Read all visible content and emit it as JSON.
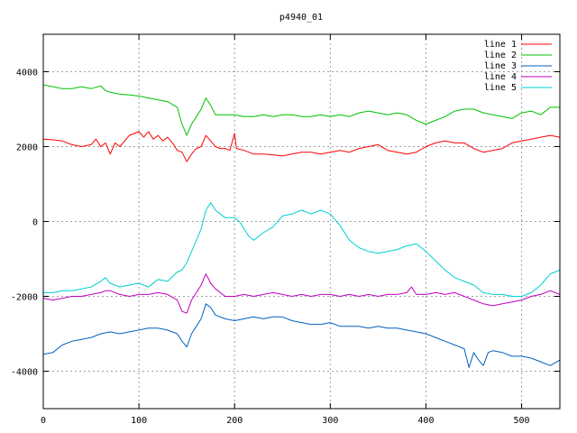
{
  "chart_data": {
    "type": "line",
    "title": "p4940_01",
    "xlabel": "",
    "ylabel": "",
    "xlim": [
      0,
      540
    ],
    "ylim": [
      -5000,
      5000
    ],
    "x_ticks": [
      0,
      100,
      200,
      300,
      400,
      500
    ],
    "y_ticks": [
      -4000,
      -2000,
      0,
      2000,
      4000
    ],
    "grid": true,
    "legend_position": "top-right",
    "series": [
      {
        "name": "line 1",
        "color": "#ff0000",
        "points": [
          [
            0,
            2200
          ],
          [
            10,
            2180
          ],
          [
            20,
            2150
          ],
          [
            30,
            2050
          ],
          [
            40,
            2000
          ],
          [
            50,
            2050
          ],
          [
            55,
            2200
          ],
          [
            60,
            2000
          ],
          [
            65,
            2100
          ],
          [
            70,
            1800
          ],
          [
            75,
            2100
          ],
          [
            80,
            2000
          ],
          [
            90,
            2300
          ],
          [
            95,
            2350
          ],
          [
            100,
            2400
          ],
          [
            105,
            2250
          ],
          [
            110,
            2400
          ],
          [
            115,
            2200
          ],
          [
            120,
            2300
          ],
          [
            125,
            2150
          ],
          [
            130,
            2250
          ],
          [
            135,
            2100
          ],
          [
            140,
            1900
          ],
          [
            145,
            1850
          ],
          [
            150,
            1600
          ],
          [
            155,
            1800
          ],
          [
            160,
            1950
          ],
          [
            165,
            2000
          ],
          [
            170,
            2300
          ],
          [
            175,
            2150
          ],
          [
            180,
            2000
          ],
          [
            185,
            1950
          ],
          [
            190,
            1950
          ],
          [
            195,
            1900
          ],
          [
            200,
            2350
          ],
          [
            202,
            1950
          ],
          [
            210,
            1900
          ],
          [
            220,
            1800
          ],
          [
            230,
            1800
          ],
          [
            240,
            1780
          ],
          [
            250,
            1750
          ],
          [
            260,
            1800
          ],
          [
            270,
            1850
          ],
          [
            280,
            1850
          ],
          [
            290,
            1800
          ],
          [
            300,
            1850
          ],
          [
            310,
            1900
          ],
          [
            320,
            1850
          ],
          [
            330,
            1950
          ],
          [
            340,
            2000
          ],
          [
            350,
            2050
          ],
          [
            360,
            1900
          ],
          [
            370,
            1850
          ],
          [
            380,
            1800
          ],
          [
            390,
            1850
          ],
          [
            400,
            2000
          ],
          [
            410,
            2100
          ],
          [
            420,
            2150
          ],
          [
            430,
            2100
          ],
          [
            440,
            2100
          ],
          [
            450,
            1950
          ],
          [
            460,
            1850
          ],
          [
            470,
            1900
          ],
          [
            480,
            1950
          ],
          [
            490,
            2100
          ],
          [
            500,
            2150
          ],
          [
            510,
            2200
          ],
          [
            520,
            2250
          ],
          [
            530,
            2300
          ],
          [
            540,
            2250
          ]
        ]
      },
      {
        "name": "line 2",
        "color": "#00c000",
        "points": [
          [
            0,
            3650
          ],
          [
            10,
            3600
          ],
          [
            20,
            3550
          ],
          [
            30,
            3550
          ],
          [
            40,
            3600
          ],
          [
            50,
            3550
          ],
          [
            60,
            3620
          ],
          [
            65,
            3500
          ],
          [
            70,
            3450
          ],
          [
            80,
            3400
          ],
          [
            90,
            3380
          ],
          [
            100,
            3350
          ],
          [
            110,
            3300
          ],
          [
            120,
            3250
          ],
          [
            130,
            3200
          ],
          [
            140,
            3050
          ],
          [
            145,
            2600
          ],
          [
            150,
            2300
          ],
          [
            155,
            2600
          ],
          [
            160,
            2800
          ],
          [
            165,
            3000
          ],
          [
            170,
            3300
          ],
          [
            175,
            3100
          ],
          [
            180,
            2850
          ],
          [
            190,
            2850
          ],
          [
            200,
            2850
          ],
          [
            210,
            2800
          ],
          [
            220,
            2800
          ],
          [
            230,
            2850
          ],
          [
            240,
            2800
          ],
          [
            250,
            2850
          ],
          [
            260,
            2850
          ],
          [
            270,
            2800
          ],
          [
            280,
            2800
          ],
          [
            290,
            2850
          ],
          [
            300,
            2800
          ],
          [
            310,
            2850
          ],
          [
            320,
            2800
          ],
          [
            330,
            2900
          ],
          [
            340,
            2950
          ],
          [
            350,
            2900
          ],
          [
            360,
            2850
          ],
          [
            370,
            2900
          ],
          [
            380,
            2850
          ],
          [
            390,
            2700
          ],
          [
            400,
            2600
          ],
          [
            410,
            2700
          ],
          [
            420,
            2800
          ],
          [
            430,
            2950
          ],
          [
            440,
            3000
          ],
          [
            450,
            3000
          ],
          [
            460,
            2900
          ],
          [
            470,
            2850
          ],
          [
            480,
            2800
          ],
          [
            490,
            2750
          ],
          [
            500,
            2900
          ],
          [
            510,
            2950
          ],
          [
            520,
            2850
          ],
          [
            530,
            3050
          ],
          [
            540,
            3050
          ]
        ]
      },
      {
        "name": "line 3",
        "color": "#0060c0",
        "points": [
          [
            0,
            -3550
          ],
          [
            10,
            -3500
          ],
          [
            20,
            -3300
          ],
          [
            30,
            -3200
          ],
          [
            40,
            -3150
          ],
          [
            50,
            -3100
          ],
          [
            60,
            -3000
          ],
          [
            70,
            -2950
          ],
          [
            80,
            -3000
          ],
          [
            90,
            -2950
          ],
          [
            100,
            -2900
          ],
          [
            110,
            -2850
          ],
          [
            120,
            -2850
          ],
          [
            130,
            -2900
          ],
          [
            140,
            -3000
          ],
          [
            145,
            -3200
          ],
          [
            150,
            -3350
          ],
          [
            155,
            -3000
          ],
          [
            160,
            -2800
          ],
          [
            165,
            -2600
          ],
          [
            170,
            -2200
          ],
          [
            175,
            -2300
          ],
          [
            180,
            -2500
          ],
          [
            190,
            -2600
          ],
          [
            200,
            -2650
          ],
          [
            210,
            -2600
          ],
          [
            220,
            -2550
          ],
          [
            230,
            -2600
          ],
          [
            240,
            -2550
          ],
          [
            250,
            -2550
          ],
          [
            260,
            -2650
          ],
          [
            270,
            -2700
          ],
          [
            280,
            -2750
          ],
          [
            290,
            -2750
          ],
          [
            300,
            -2700
          ],
          [
            310,
            -2800
          ],
          [
            320,
            -2800
          ],
          [
            330,
            -2800
          ],
          [
            340,
            -2850
          ],
          [
            350,
            -2800
          ],
          [
            360,
            -2850
          ],
          [
            370,
            -2850
          ],
          [
            380,
            -2900
          ],
          [
            390,
            -2950
          ],
          [
            400,
            -3000
          ],
          [
            410,
            -3100
          ],
          [
            420,
            -3200
          ],
          [
            430,
            -3300
          ],
          [
            440,
            -3400
          ],
          [
            445,
            -3900
          ],
          [
            450,
            -3500
          ],
          [
            455,
            -3700
          ],
          [
            460,
            -3850
          ],
          [
            465,
            -3500
          ],
          [
            470,
            -3450
          ],
          [
            480,
            -3500
          ],
          [
            490,
            -3600
          ],
          [
            500,
            -3600
          ],
          [
            510,
            -3650
          ],
          [
            520,
            -3750
          ],
          [
            530,
            -3850
          ],
          [
            540,
            -3700
          ]
        ]
      },
      {
        "name": "line 4",
        "color": "#c000c0",
        "points": [
          [
            0,
            -2050
          ],
          [
            10,
            -2100
          ],
          [
            20,
            -2050
          ],
          [
            30,
            -2000
          ],
          [
            40,
            -2000
          ],
          [
            50,
            -1950
          ],
          [
            60,
            -1900
          ],
          [
            65,
            -1850
          ],
          [
            70,
            -1850
          ],
          [
            80,
            -1950
          ],
          [
            90,
            -2000
          ],
          [
            100,
            -1950
          ],
          [
            110,
            -1950
          ],
          [
            120,
            -1900
          ],
          [
            130,
            -1950
          ],
          [
            140,
            -2100
          ],
          [
            145,
            -2400
          ],
          [
            150,
            -2450
          ],
          [
            155,
            -2100
          ],
          [
            160,
            -1900
          ],
          [
            165,
            -1700
          ],
          [
            170,
            -1400
          ],
          [
            175,
            -1650
          ],
          [
            180,
            -1800
          ],
          [
            190,
            -2000
          ],
          [
            200,
            -2000
          ],
          [
            210,
            -1950
          ],
          [
            220,
            -2000
          ],
          [
            230,
            -1950
          ],
          [
            240,
            -1900
          ],
          [
            250,
            -1950
          ],
          [
            260,
            -2000
          ],
          [
            270,
            -1950
          ],
          [
            280,
            -2000
          ],
          [
            290,
            -1950
          ],
          [
            300,
            -1950
          ],
          [
            310,
            -2000
          ],
          [
            320,
            -1950
          ],
          [
            330,
            -2000
          ],
          [
            340,
            -1950
          ],
          [
            350,
            -2000
          ],
          [
            360,
            -1950
          ],
          [
            370,
            -1950
          ],
          [
            380,
            -1900
          ],
          [
            385,
            -1750
          ],
          [
            390,
            -1950
          ],
          [
            400,
            -1950
          ],
          [
            410,
            -1900
          ],
          [
            420,
            -1950
          ],
          [
            430,
            -1900
          ],
          [
            440,
            -2000
          ],
          [
            450,
            -2100
          ],
          [
            460,
            -2200
          ],
          [
            470,
            -2250
          ],
          [
            480,
            -2200
          ],
          [
            490,
            -2150
          ],
          [
            500,
            -2100
          ],
          [
            510,
            -2000
          ],
          [
            520,
            -1950
          ],
          [
            530,
            -1850
          ],
          [
            540,
            -1950
          ]
        ]
      },
      {
        "name": "line 5",
        "color": "#00d0d0",
        "points": [
          [
            0,
            -1900
          ],
          [
            10,
            -1900
          ],
          [
            20,
            -1850
          ],
          [
            30,
            -1850
          ],
          [
            40,
            -1800
          ],
          [
            50,
            -1750
          ],
          [
            60,
            -1600
          ],
          [
            65,
            -1500
          ],
          [
            70,
            -1650
          ],
          [
            80,
            -1750
          ],
          [
            90,
            -1700
          ],
          [
            100,
            -1650
          ],
          [
            110,
            -1750
          ],
          [
            120,
            -1550
          ],
          [
            130,
            -1600
          ],
          [
            140,
            -1350
          ],
          [
            145,
            -1300
          ],
          [
            150,
            -1100
          ],
          [
            155,
            -800
          ],
          [
            160,
            -500
          ],
          [
            165,
            -200
          ],
          [
            170,
            300
          ],
          [
            175,
            500
          ],
          [
            180,
            300
          ],
          [
            185,
            200
          ],
          [
            190,
            100
          ],
          [
            200,
            100
          ],
          [
            205,
            0
          ],
          [
            210,
            -200
          ],
          [
            215,
            -400
          ],
          [
            220,
            -500
          ],
          [
            230,
            -300
          ],
          [
            240,
            -150
          ],
          [
            250,
            150
          ],
          [
            260,
            200
          ],
          [
            270,
            300
          ],
          [
            280,
            200
          ],
          [
            290,
            300
          ],
          [
            300,
            200
          ],
          [
            310,
            -100
          ],
          [
            320,
            -500
          ],
          [
            330,
            -700
          ],
          [
            340,
            -800
          ],
          [
            350,
            -850
          ],
          [
            360,
            -800
          ],
          [
            370,
            -750
          ],
          [
            380,
            -650
          ],
          [
            390,
            -600
          ],
          [
            400,
            -800
          ],
          [
            410,
            -1050
          ],
          [
            420,
            -1300
          ],
          [
            430,
            -1500
          ],
          [
            440,
            -1600
          ],
          [
            450,
            -1700
          ],
          [
            460,
            -1900
          ],
          [
            470,
            -1950
          ],
          [
            480,
            -1950
          ],
          [
            490,
            -2000
          ],
          [
            500,
            -2000
          ],
          [
            510,
            -1900
          ],
          [
            520,
            -1700
          ],
          [
            530,
            -1400
          ],
          [
            540,
            -1300
          ]
        ]
      }
    ]
  }
}
